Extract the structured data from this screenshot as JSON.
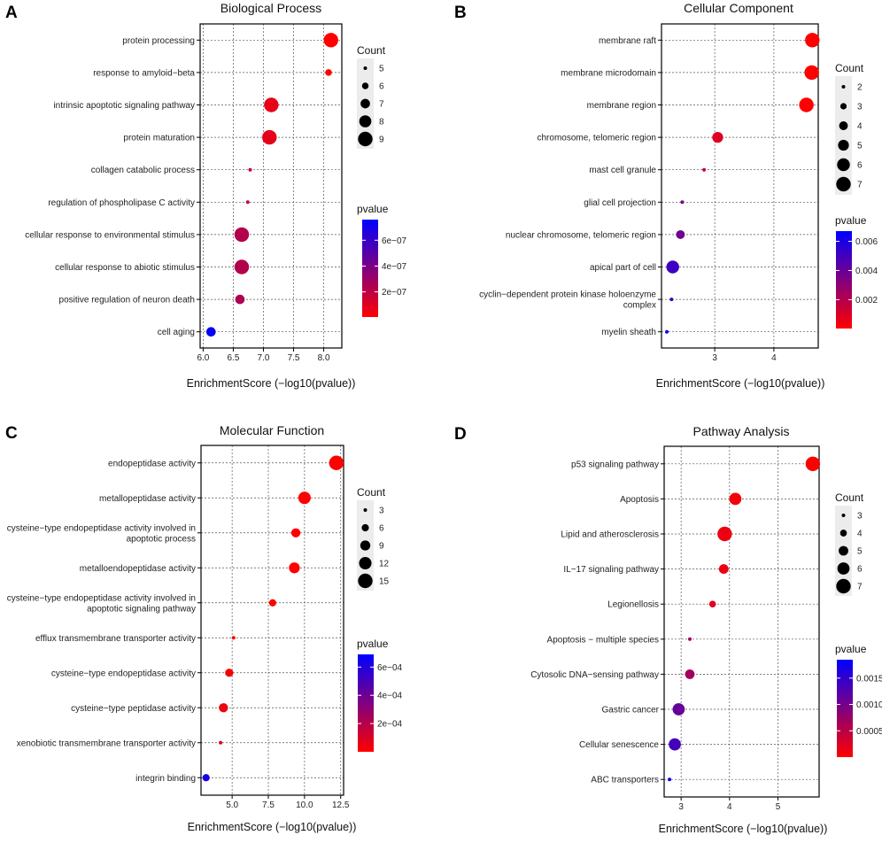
{
  "chart_data": [
    {
      "panel": "A",
      "type": "scatter",
      "title": "Biological Process",
      "xlabel": "EnrichmentScore (−log10(pvalue))",
      "ylabel": "",
      "xlim": [
        5.95,
        8.3
      ],
      "xticks": [
        "6.0",
        "6.5",
        "7.0",
        "7.5",
        "8.0"
      ],
      "xtick_values": [
        6.0,
        6.5,
        7.0,
        7.5,
        8.0
      ],
      "categories": [
        "protein processing",
        "response to amyloid−beta",
        "intrinsic apoptotic signaling pathway",
        "protein maturation",
        "collagen catabolic process",
        "regulation of phospholipase C activity",
        "cellular response to environmental stimulus",
        "cellular response to abiotic stimulus",
        "positive regulation of neuron death",
        "cell aging"
      ],
      "x": [
        8.12,
        8.08,
        7.13,
        7.1,
        6.78,
        6.74,
        6.64,
        6.64,
        6.61,
        6.13
      ],
      "count": [
        9,
        6,
        9,
        9,
        5,
        5,
        9,
        9,
        7,
        7
      ],
      "pvalue": [
        7.6e-09,
        8.3e-09,
        7.4e-08,
        7.9e-08,
        1.66e-07,
        1.82e-07,
        2.3e-07,
        2.3e-07,
        2.45e-07,
        7.4e-07
      ],
      "size_legend": {
        "title": "Count",
        "values": [
          5,
          6,
          7,
          8,
          9
        ],
        "labels": [
          "5",
          "6",
          "7",
          "8",
          "9"
        ]
      },
      "color_legend": {
        "title": "pvalue",
        "min": 5e-09,
        "max": 7.6e-07,
        "ticks": [
          2e-07,
          4e-07,
          6e-07
        ],
        "labels": [
          "2e−07",
          "4e−07",
          "6e−07"
        ]
      }
    },
    {
      "panel": "B",
      "type": "scatter",
      "title": "Cellular Component",
      "xlabel": "EnrichmentScore (−log10(pvalue))",
      "ylabel": "",
      "xlim": [
        2.1,
        4.75
      ],
      "xticks": [
        "3",
        "4"
      ],
      "xtick_values": [
        3,
        4
      ],
      "categories": [
        "membrane raft",
        "membrane microdomain",
        "membrane region",
        "chromosome, telomeric region",
        "mast cell granule",
        "glial cell projection",
        "nuclear chromosome, telomeric region",
        "apical part of cell",
        "cyclin−dependent protein kinase holoenzyme complex",
        "myelin sheath"
      ],
      "x": [
        4.65,
        4.64,
        4.55,
        3.05,
        2.82,
        2.45,
        2.42,
        2.29,
        2.27,
        2.19
      ],
      "count": [
        7,
        7,
        7,
        5,
        2,
        2,
        4,
        6,
        2,
        2
      ],
      "pvalue": [
        2.2e-05,
        2.3e-05,
        2.8e-05,
        0.00089,
        0.0015,
        0.0035,
        0.0038,
        0.0051,
        0.0054,
        0.0065
      ],
      "size_legend": {
        "title": "Count",
        "values": [
          2,
          3,
          4,
          5,
          6,
          7
        ],
        "labels": [
          "2",
          "3",
          "4",
          "5",
          "6",
          "7"
        ]
      },
      "color_legend": {
        "title": "pvalue",
        "min": 2e-05,
        "max": 0.0067,
        "ticks": [
          0.002,
          0.004,
          0.006
        ],
        "labels": [
          "0.002",
          "0.004",
          "0.006"
        ]
      }
    },
    {
      "panel": "C",
      "type": "scatter",
      "title": "Molecular Function",
      "xlabel": "EnrichmentScore (−log10(pvalue))",
      "ylabel": "",
      "xlim": [
        2.85,
        12.7
      ],
      "xticks": [
        "5.0",
        "7.5",
        "10.0",
        "12.5"
      ],
      "xtick_values": [
        5.0,
        7.5,
        10.0,
        12.5
      ],
      "categories": [
        "endopeptidase activity",
        "metallopeptidase activity",
        "cysteine−type endopeptidase activity involved in apoptotic process",
        "metalloendopeptidase activity",
        "cysteine−type endopeptidase activity involved in apoptotic signaling pathway",
        "efflux transmembrane transporter activity",
        "cysteine−type endopeptidase activity",
        "cysteine−type peptidase activity",
        "xenobiotic transmembrane transporter activity",
        "integrin binding"
      ],
      "x": [
        12.2,
        10.0,
        9.4,
        9.3,
        7.8,
        5.1,
        4.8,
        4.4,
        4.2,
        3.2
      ],
      "count": [
        15,
        12,
        8,
        10,
        6,
        3,
        7,
        8,
        3,
        6
      ],
      "pvalue": [
        6e-13,
        1e-10,
        4e-10,
        5e-10,
        1.6e-08,
        8e-06,
        1.6e-05,
        4e-05,
        6.3e-05,
        0.00063
      ],
      "size_legend": {
        "title": "Count",
        "values": [
          3,
          6,
          9,
          12,
          15
        ],
        "labels": [
          "3",
          "6",
          "9",
          "12",
          "15"
        ]
      },
      "color_legend": {
        "title": "pvalue",
        "min": 0,
        "max": 0.00069,
        "ticks": [
          0.0002,
          0.0004,
          0.0006
        ],
        "labels": [
          "2e−04",
          "4e−04",
          "6e−04"
        ]
      }
    },
    {
      "panel": "D",
      "type": "scatter",
      "title": "Pathway Analysis",
      "xlabel": "EnrichmentScore (−log10(pvalue))",
      "ylabel": "",
      "xlim": [
        2.65,
        5.85
      ],
      "xticks": [
        "3",
        "4",
        "5"
      ],
      "xtick_values": [
        3,
        4,
        5
      ],
      "categories": [
        "p53 signaling pathway",
        "Apoptosis",
        "Lipid and atherosclerosis",
        "IL−17 signaling pathway",
        "Legionellosis",
        "Apoptosis − multiple species",
        "Cytosolic DNA−sensing pathway",
        "Gastric cancer",
        "Cellular senescence",
        "ABC transporters"
      ],
      "x": [
        5.72,
        4.12,
        3.9,
        3.88,
        3.65,
        3.18,
        3.18,
        2.95,
        2.87,
        2.76
      ],
      "count": [
        7,
        6,
        7,
        5,
        4,
        3,
        5,
        6,
        6,
        3
      ],
      "pvalue": [
        2e-06,
        7.6e-05,
        0.000126,
        0.000132,
        0.00022,
        0.00066,
        0.00066,
        0.00112,
        0.00135,
        0.00174
      ],
      "size_legend": {
        "title": "Count",
        "values": [
          3,
          4,
          5,
          6,
          7
        ],
        "labels": [
          "3",
          "4",
          "5",
          "6",
          "7"
        ]
      },
      "color_legend": {
        "title": "pvalue",
        "min": 0,
        "max": 0.00185,
        "ticks": [
          0.0005,
          0.001,
          0.0015
        ],
        "labels": [
          "0.0005",
          "0.0010",
          "0.0015"
        ]
      }
    }
  ],
  "colors": {
    "low": "#ff0000",
    "high": "#0000ff",
    "panel_bg": "#ffffff",
    "grid": "#555555",
    "frame": "#000000",
    "legend_box": "#ececec"
  }
}
